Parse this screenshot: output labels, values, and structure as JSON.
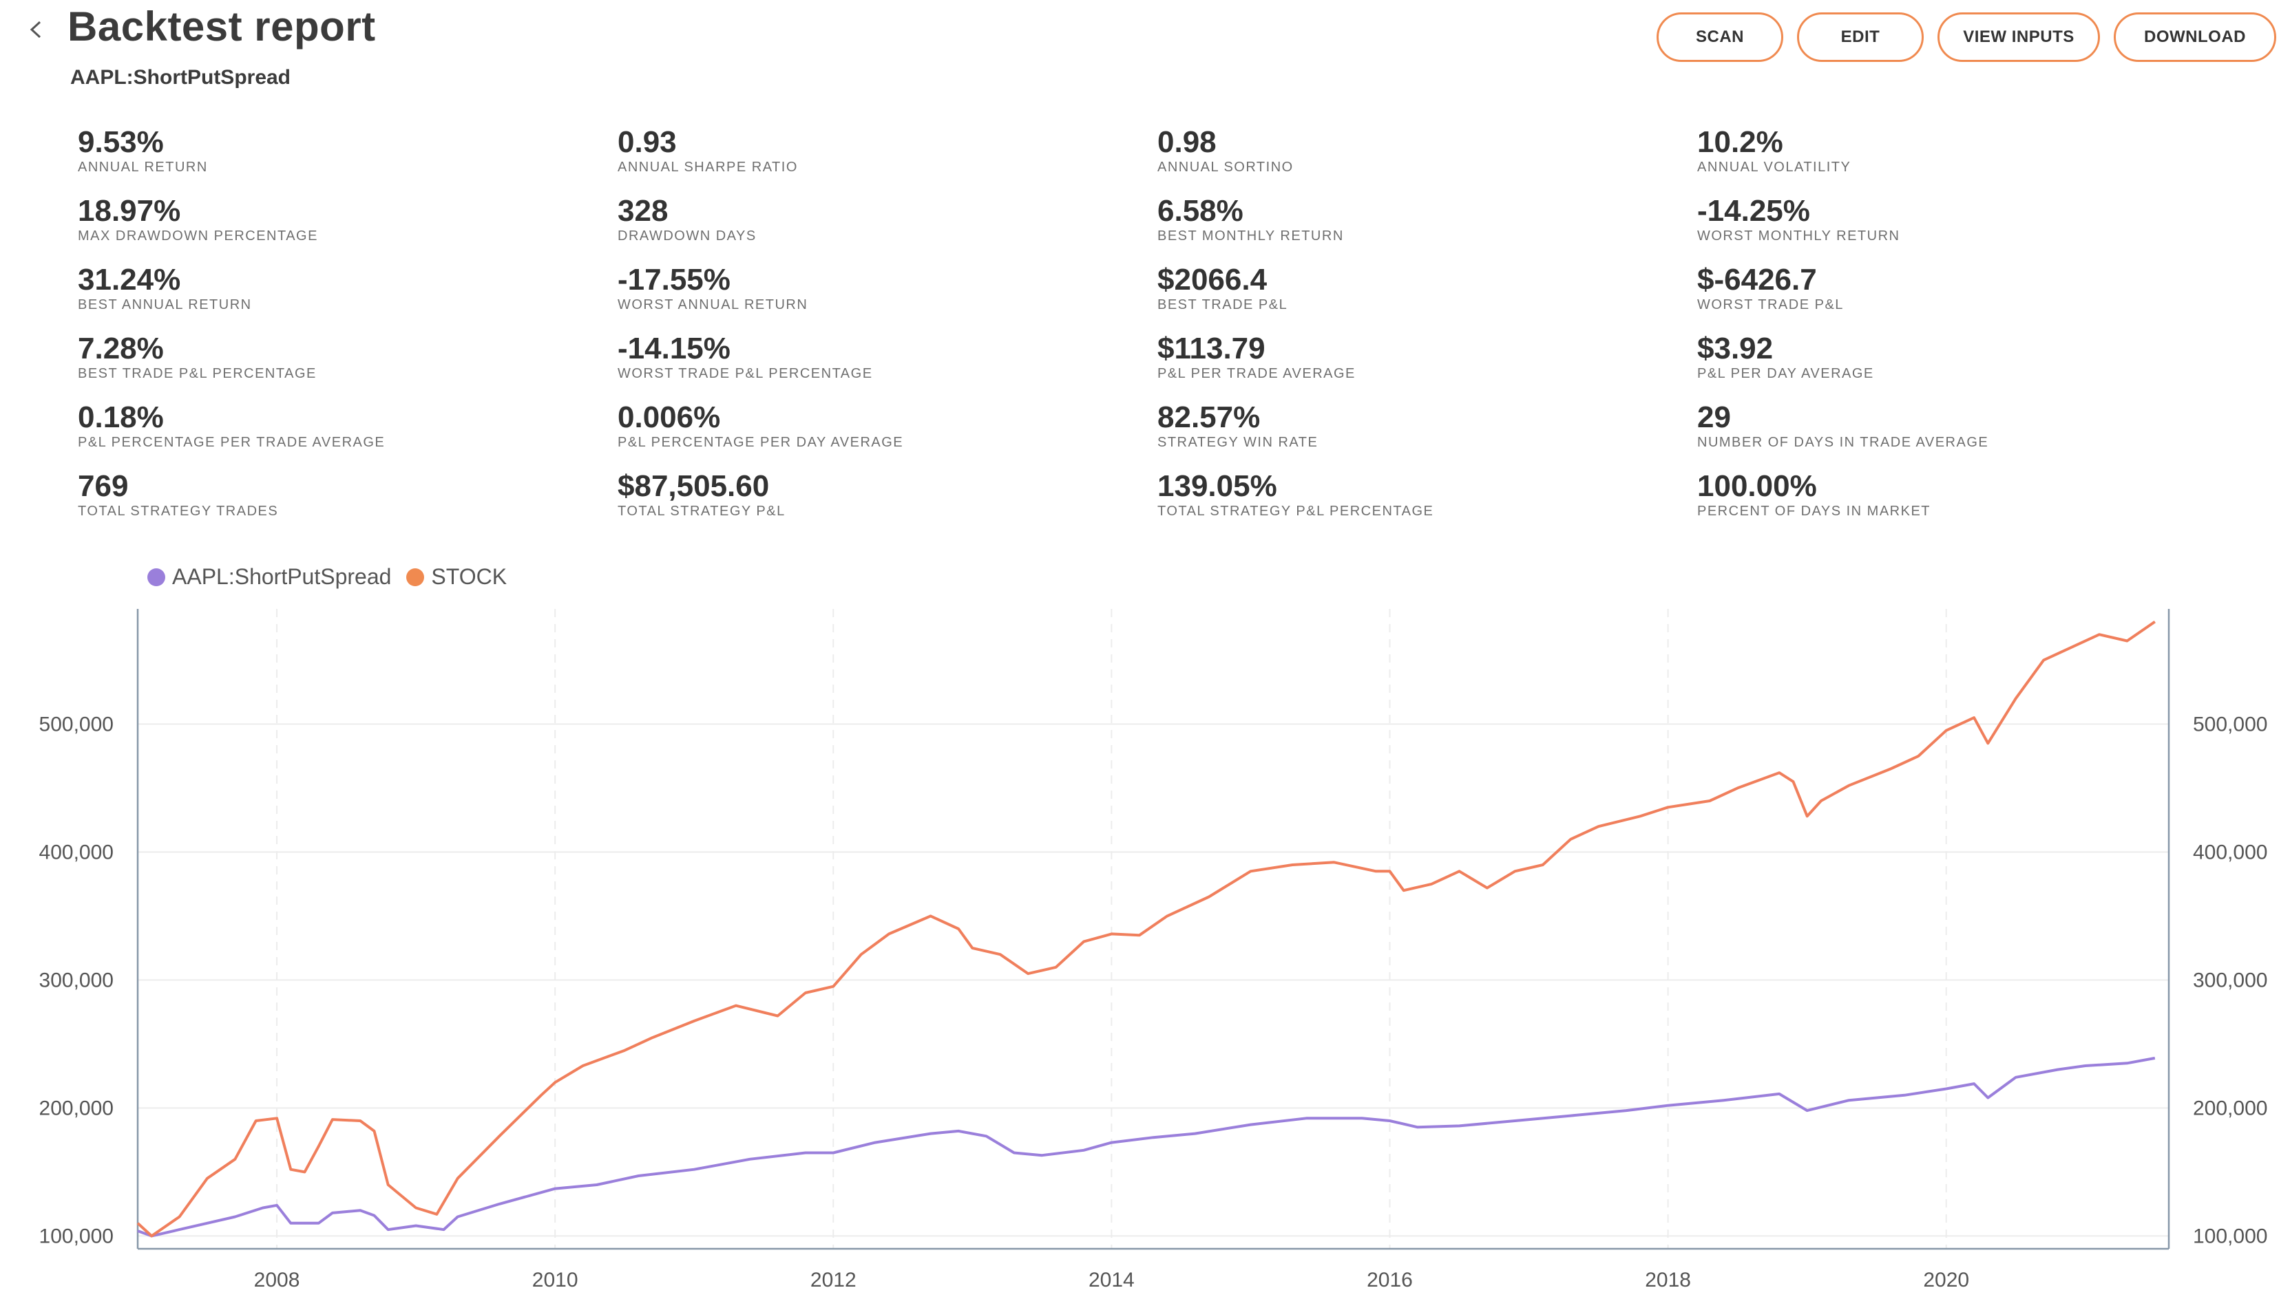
{
  "header": {
    "title": "Backtest report",
    "subtitle": "AAPL:ShortPutSpread",
    "back_icon": "chevron-left-icon"
  },
  "actions": {
    "scan": "SCAN",
    "edit": "EDIT",
    "view_inputs": "VIEW INPUTS",
    "download": "DOWNLOAD",
    "accent_color": "#f08a50"
  },
  "stats": [
    {
      "value": "9.53%",
      "label": "ANNUAL RETURN"
    },
    {
      "value": "0.93",
      "label": "ANNUAL SHARPE RATIO"
    },
    {
      "value": "0.98",
      "label": "ANNUAL SORTINO"
    },
    {
      "value": "10.2%",
      "label": "ANNUAL VOLATILITY"
    },
    {
      "value": "18.97%",
      "label": "MAX DRAWDOWN PERCENTAGE"
    },
    {
      "value": "328",
      "label": "DRAWDOWN DAYS"
    },
    {
      "value": "6.58%",
      "label": "BEST MONTHLY RETURN"
    },
    {
      "value": "-14.25%",
      "label": "WORST MONTHLY RETURN"
    },
    {
      "value": "31.24%",
      "label": "BEST ANNUAL RETURN"
    },
    {
      "value": "-17.55%",
      "label": "WORST ANNUAL RETURN"
    },
    {
      "value": "$2066.4",
      "label": "BEST TRADE P&L"
    },
    {
      "value": "$-6426.7",
      "label": "WORST TRADE P&L"
    },
    {
      "value": "7.28%",
      "label": "BEST TRADE P&L PERCENTAGE"
    },
    {
      "value": "-14.15%",
      "label": "WORST TRADE P&L PERCENTAGE"
    },
    {
      "value": "$113.79",
      "label": "P&L PER TRADE AVERAGE"
    },
    {
      "value": "$3.92",
      "label": "P&L PER DAY AVERAGE"
    },
    {
      "value": "0.18%",
      "label": "P&L PERCENTAGE PER TRADE AVERAGE"
    },
    {
      "value": "0.006%",
      "label": "P&L PERCENTAGE PER DAY AVERAGE"
    },
    {
      "value": "82.57%",
      "label": "STRATEGY WIN RATE"
    },
    {
      "value": "29",
      "label": "NUMBER OF DAYS IN TRADE AVERAGE"
    },
    {
      "value": "769",
      "label": "TOTAL STRATEGY TRADES"
    },
    {
      "value": "$87,505.60",
      "label": "TOTAL STRATEGY P&L"
    },
    {
      "value": "139.05%",
      "label": "TOTAL STRATEGY P&L PERCENTAGE"
    },
    {
      "value": "100.00%",
      "label": "PERCENT OF DAYS IN MARKET"
    }
  ],
  "chart_data": {
    "type": "line",
    "title": "",
    "xlabel": "",
    "ylabel": "",
    "xlim": [
      2007.0,
      2021.6
    ],
    "ylim": [
      90000,
      590000
    ],
    "x_ticks": [
      2008,
      2010,
      2012,
      2014,
      2016,
      2018,
      2020
    ],
    "y_ticks": [
      100000,
      200000,
      300000,
      400000,
      500000
    ],
    "y_tick_labels": [
      "100,000",
      "200,000",
      "300,000",
      "400,000",
      "500,000"
    ],
    "y_axis_both_sides": true,
    "grid": true,
    "legend_position": "top-left",
    "series": [
      {
        "name": "AAPL:ShortPutSpread",
        "color": "#9a7fdb",
        "points": [
          [
            2007.0,
            104000
          ],
          [
            2007.1,
            100000
          ],
          [
            2007.3,
            105000
          ],
          [
            2007.5,
            110000
          ],
          [
            2007.7,
            115000
          ],
          [
            2007.9,
            122000
          ],
          [
            2008.0,
            124000
          ],
          [
            2008.1,
            110000
          ],
          [
            2008.3,
            110000
          ],
          [
            2008.4,
            118000
          ],
          [
            2008.6,
            120000
          ],
          [
            2008.7,
            116000
          ],
          [
            2008.8,
            105000
          ],
          [
            2009.0,
            108000
          ],
          [
            2009.2,
            105000
          ],
          [
            2009.3,
            115000
          ],
          [
            2009.6,
            125000
          ],
          [
            2010.0,
            137000
          ],
          [
            2010.3,
            140000
          ],
          [
            2010.6,
            147000
          ],
          [
            2011.0,
            152000
          ],
          [
            2011.4,
            160000
          ],
          [
            2011.8,
            165000
          ],
          [
            2012.0,
            165000
          ],
          [
            2012.3,
            173000
          ],
          [
            2012.7,
            180000
          ],
          [
            2012.9,
            182000
          ],
          [
            2013.1,
            178000
          ],
          [
            2013.3,
            165000
          ],
          [
            2013.5,
            163000
          ],
          [
            2013.8,
            167000
          ],
          [
            2014.0,
            173000
          ],
          [
            2014.3,
            177000
          ],
          [
            2014.6,
            180000
          ],
          [
            2015.0,
            187000
          ],
          [
            2015.4,
            192000
          ],
          [
            2015.8,
            192000
          ],
          [
            2016.0,
            190000
          ],
          [
            2016.2,
            185000
          ],
          [
            2016.5,
            186000
          ],
          [
            2016.9,
            190000
          ],
          [
            2017.3,
            194000
          ],
          [
            2017.7,
            198000
          ],
          [
            2018.0,
            202000
          ],
          [
            2018.4,
            206000
          ],
          [
            2018.8,
            211000
          ],
          [
            2019.0,
            198000
          ],
          [
            2019.3,
            206000
          ],
          [
            2019.7,
            210000
          ],
          [
            2020.0,
            215000
          ],
          [
            2020.2,
            219000
          ],
          [
            2020.3,
            208000
          ],
          [
            2020.5,
            224000
          ],
          [
            2020.8,
            230000
          ],
          [
            2021.0,
            233000
          ],
          [
            2021.3,
            235000
          ],
          [
            2021.5,
            239000
          ]
        ]
      },
      {
        "name": "STOCK",
        "color": "#f07f5c",
        "points": [
          [
            2007.0,
            110000
          ],
          [
            2007.1,
            100000
          ],
          [
            2007.3,
            115000
          ],
          [
            2007.5,
            145000
          ],
          [
            2007.7,
            160000
          ],
          [
            2007.85,
            190000
          ],
          [
            2008.0,
            192000
          ],
          [
            2008.1,
            152000
          ],
          [
            2008.2,
            150000
          ],
          [
            2008.3,
            170000
          ],
          [
            2008.4,
            191000
          ],
          [
            2008.6,
            190000
          ],
          [
            2008.7,
            182000
          ],
          [
            2008.8,
            140000
          ],
          [
            2009.0,
            122000
          ],
          [
            2009.15,
            117000
          ],
          [
            2009.3,
            145000
          ],
          [
            2009.6,
            178000
          ],
          [
            2009.9,
            210000
          ],
          [
            2010.0,
            220000
          ],
          [
            2010.2,
            233000
          ],
          [
            2010.5,
            245000
          ],
          [
            2010.7,
            255000
          ],
          [
            2011.0,
            268000
          ],
          [
            2011.3,
            280000
          ],
          [
            2011.6,
            272000
          ],
          [
            2011.8,
            290000
          ],
          [
            2012.0,
            295000
          ],
          [
            2012.2,
            320000
          ],
          [
            2012.4,
            336000
          ],
          [
            2012.7,
            350000
          ],
          [
            2012.9,
            340000
          ],
          [
            2013.0,
            325000
          ],
          [
            2013.2,
            320000
          ],
          [
            2013.4,
            305000
          ],
          [
            2013.6,
            310000
          ],
          [
            2013.8,
            330000
          ],
          [
            2014.0,
            336000
          ],
          [
            2014.2,
            335000
          ],
          [
            2014.4,
            350000
          ],
          [
            2014.7,
            365000
          ],
          [
            2015.0,
            385000
          ],
          [
            2015.3,
            390000
          ],
          [
            2015.6,
            392000
          ],
          [
            2015.9,
            385000
          ],
          [
            2016.0,
            385000
          ],
          [
            2016.1,
            370000
          ],
          [
            2016.3,
            375000
          ],
          [
            2016.5,
            385000
          ],
          [
            2016.7,
            372000
          ],
          [
            2016.9,
            385000
          ],
          [
            2017.1,
            390000
          ],
          [
            2017.3,
            410000
          ],
          [
            2017.5,
            420000
          ],
          [
            2017.8,
            428000
          ],
          [
            2018.0,
            435000
          ],
          [
            2018.3,
            440000
          ],
          [
            2018.5,
            450000
          ],
          [
            2018.8,
            462000
          ],
          [
            2018.9,
            455000
          ],
          [
            2019.0,
            428000
          ],
          [
            2019.1,
            440000
          ],
          [
            2019.3,
            452000
          ],
          [
            2019.6,
            465000
          ],
          [
            2019.8,
            475000
          ],
          [
            2020.0,
            495000
          ],
          [
            2020.2,
            505000
          ],
          [
            2020.3,
            485000
          ],
          [
            2020.5,
            520000
          ],
          [
            2020.7,
            550000
          ],
          [
            2020.9,
            560000
          ],
          [
            2021.1,
            570000
          ],
          [
            2021.3,
            565000
          ],
          [
            2021.5,
            580000
          ]
        ]
      }
    ]
  }
}
